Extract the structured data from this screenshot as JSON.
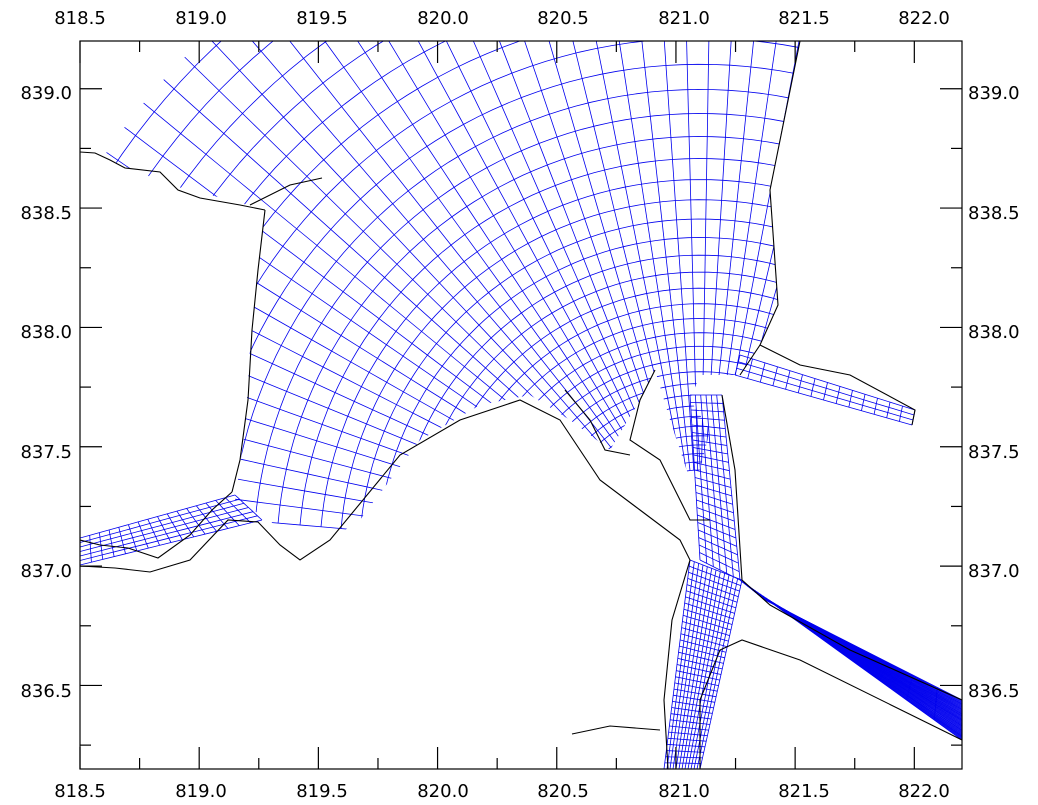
{
  "map": {
    "x_range": [
      818.5,
      822.2
    ],
    "y_range": [
      836.15,
      839.2
    ],
    "x_tick_labels": [
      "818.5",
      "819.0",
      "819.5",
      "820.0",
      "820.5",
      "821.0",
      "821.5",
      "822.0"
    ],
    "y_tick_labels": [
      "836.5",
      "837.0",
      "837.5",
      "838.0",
      "838.5",
      "839.0"
    ],
    "grid_color": "#0000ee",
    "coast_color": "#000000",
    "frame_color": "#000000"
  }
}
